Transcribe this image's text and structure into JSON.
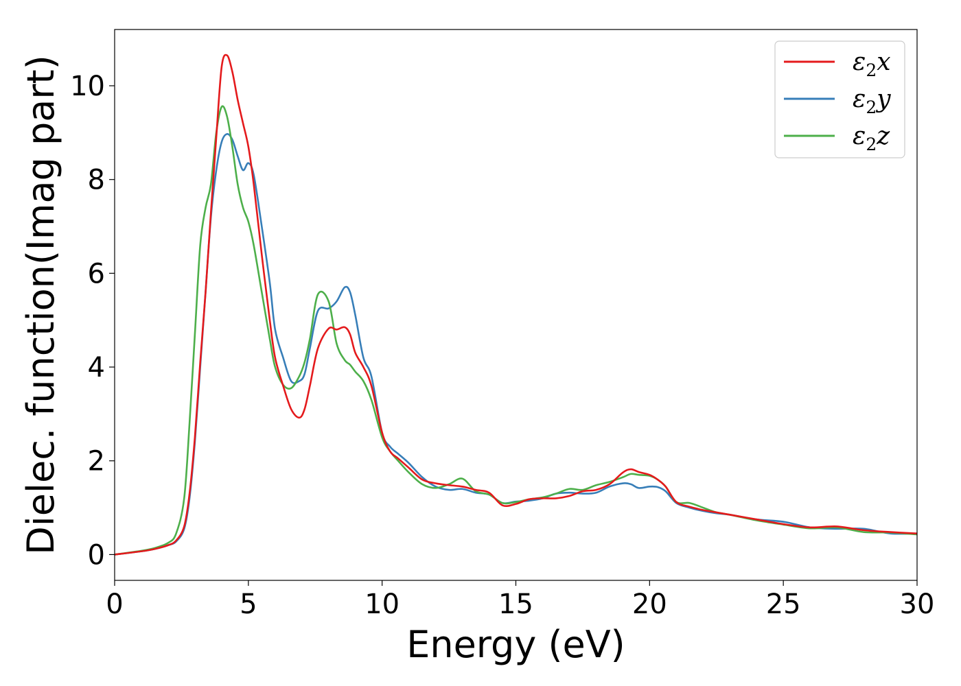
{
  "chart_data": {
    "type": "line",
    "title": "",
    "xlabel": "Energy (eV)",
    "ylabel": "Dielec. function(Imag part)",
    "xlim": [
      0,
      30
    ],
    "ylim": [
      -0.55,
      11.2
    ],
    "xticks": [
      0,
      5,
      10,
      15,
      20,
      25,
      30
    ],
    "yticks": [
      0,
      2,
      4,
      6,
      8,
      10
    ],
    "grid": false,
    "legend_position": "top-right",
    "series": [
      {
        "name": "ε₂x",
        "label_base": "ε",
        "label_sub": "2",
        "label_suffix": "x",
        "color": "#e41a1c",
        "x": [
          0,
          1,
          1.5,
          2,
          2.3,
          2.6,
          2.8,
          3,
          3.2,
          3.4,
          3.6,
          3.8,
          4,
          4.2,
          4.4,
          4.6,
          4.8,
          5,
          5.2,
          5.5,
          5.8,
          6,
          6.3,
          6.6,
          6.9,
          7.1,
          7.3,
          7.6,
          8,
          8.3,
          8.6,
          8.8,
          9,
          9.3,
          9.6,
          10,
          10.3,
          10.6,
          11,
          11.5,
          12,
          12.5,
          13,
          13.5,
          14,
          14.5,
          15,
          15.5,
          16,
          16.5,
          17,
          17.5,
          18,
          18.5,
          19,
          19.3,
          19.6,
          20,
          20.3,
          20.6,
          21,
          21.5,
          22,
          22.5,
          23,
          24,
          25,
          26,
          27,
          28,
          29,
          30
        ],
        "y": [
          0,
          0.07,
          0.12,
          0.2,
          0.3,
          0.6,
          1.3,
          2.5,
          4.1,
          5.6,
          7.3,
          8.9,
          10.4,
          10.65,
          10.3,
          9.7,
          9.2,
          8.7,
          7.9,
          6.4,
          5,
          4.2,
          3.6,
          3.1,
          2.92,
          3.1,
          3.6,
          4.4,
          4.82,
          4.8,
          4.85,
          4.7,
          4.3,
          4,
          3.6,
          2.6,
          2.2,
          2.05,
          1.85,
          1.6,
          1.52,
          1.48,
          1.45,
          1.38,
          1.32,
          1.05,
          1.08,
          1.18,
          1.2,
          1.2,
          1.25,
          1.35,
          1.38,
          1.5,
          1.75,
          1.82,
          1.76,
          1.7,
          1.6,
          1.45,
          1.12,
          1.02,
          0.95,
          0.9,
          0.85,
          0.75,
          0.65,
          0.58,
          0.6,
          0.52,
          0.48,
          0.45
        ]
      },
      {
        "name": "ε₂y",
        "label_base": "ε",
        "label_sub": "2",
        "label_suffix": "y",
        "color": "#377eb8",
        "x": [
          0,
          1,
          1.5,
          2,
          2.3,
          2.6,
          2.8,
          3,
          3.2,
          3.4,
          3.6,
          3.8,
          4,
          4.2,
          4.4,
          4.6,
          4.8,
          5,
          5.2,
          5.5,
          5.8,
          6,
          6.3,
          6.6,
          6.9,
          7.1,
          7.3,
          7.6,
          8,
          8.3,
          8.6,
          8.8,
          9,
          9.3,
          9.6,
          10,
          10.3,
          10.6,
          11,
          11.5,
          12,
          12.5,
          13,
          13.5,
          14,
          14.5,
          15,
          15.5,
          16,
          16.5,
          17,
          17.5,
          18,
          18.5,
          19,
          19.3,
          19.6,
          20,
          20.3,
          20.6,
          21,
          21.5,
          22,
          22.5,
          23,
          24,
          25,
          26,
          27,
          28,
          29,
          30
        ],
        "y": [
          0,
          0.07,
          0.12,
          0.2,
          0.28,
          0.55,
          1.2,
          2.4,
          4,
          5.6,
          7.2,
          8.2,
          8.8,
          8.97,
          8.85,
          8.5,
          8.2,
          8.35,
          8.1,
          7,
          5.8,
          4.8,
          4.2,
          3.7,
          3.7,
          3.85,
          4.4,
          5.2,
          5.25,
          5.4,
          5.7,
          5.6,
          5.1,
          4.2,
          3.8,
          2.6,
          2.3,
          2.15,
          1.95,
          1.65,
          1.45,
          1.38,
          1.4,
          1.32,
          1.28,
          1.1,
          1.13,
          1.15,
          1.2,
          1.3,
          1.32,
          1.3,
          1.32,
          1.45,
          1.52,
          1.5,
          1.42,
          1.45,
          1.44,
          1.35,
          1.1,
          1,
          0.93,
          0.88,
          0.85,
          0.75,
          0.7,
          0.58,
          0.55,
          0.55,
          0.45,
          0.45
        ]
      },
      {
        "name": "ε₂z",
        "label_base": "ε",
        "label_sub": "2",
        "label_suffix": "z",
        "color": "#4daf4a",
        "x": [
          0,
          1,
          1.5,
          2,
          2.3,
          2.6,
          2.8,
          3,
          3.2,
          3.4,
          3.6,
          3.8,
          4,
          4.2,
          4.4,
          4.6,
          4.8,
          5,
          5.2,
          5.5,
          5.8,
          6,
          6.3,
          6.6,
          6.9,
          7.1,
          7.3,
          7.6,
          8,
          8.3,
          8.6,
          8.8,
          9,
          9.3,
          9.6,
          10,
          10.3,
          10.6,
          11,
          11.5,
          12,
          12.5,
          13,
          13.5,
          14,
          14.5,
          15,
          15.5,
          16,
          16.5,
          17,
          17.5,
          18,
          18.5,
          19,
          19.3,
          19.6,
          20,
          20.3,
          20.6,
          21,
          21.5,
          22,
          22.5,
          23,
          24,
          25,
          26,
          27,
          28,
          29,
          30
        ],
        "y": [
          0,
          0.08,
          0.14,
          0.25,
          0.45,
          1.2,
          2.8,
          4.7,
          6.6,
          7.4,
          7.9,
          9.0,
          9.55,
          9.35,
          8.7,
          7.9,
          7.4,
          7.1,
          6.6,
          5.6,
          4.6,
          4,
          3.62,
          3.55,
          3.8,
          4.1,
          4.6,
          5.55,
          5.4,
          4.5,
          4.15,
          4.05,
          3.9,
          3.7,
          3.3,
          2.5,
          2.2,
          2,
          1.75,
          1.5,
          1.42,
          1.5,
          1.62,
          1.35,
          1.28,
          1.1,
          1.12,
          1.18,
          1.22,
          1.3,
          1.4,
          1.38,
          1.48,
          1.55,
          1.65,
          1.72,
          1.7,
          1.68,
          1.6,
          1.45,
          1.12,
          1.1,
          1,
          0.9,
          0.85,
          0.73,
          0.64,
          0.56,
          0.58,
          0.48,
          0.47,
          0.43
        ]
      }
    ]
  }
}
